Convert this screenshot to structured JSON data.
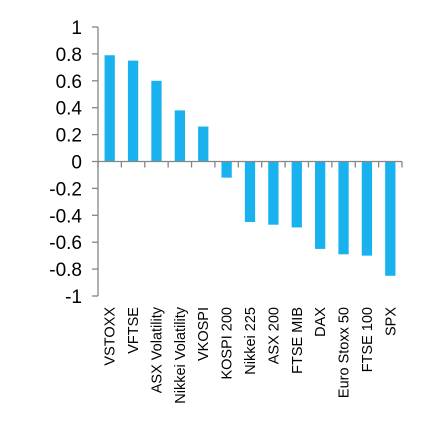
{
  "chart_data": {
    "type": "bar",
    "categories": [
      "VSTOXX",
      "VFTSE",
      "ASX Volatility",
      "Nikkei Volatility",
      "VKOSPI",
      "KOSPI 200",
      "Nikkei 225",
      "ASX 200",
      "FTSE MIB",
      "DAX",
      "Euro Stoxx 50",
      "FTSE 100",
      "SPX"
    ],
    "values": [
      0.79,
      0.75,
      0.6,
      0.38,
      0.26,
      -0.12,
      -0.45,
      -0.47,
      -0.49,
      -0.65,
      -0.69,
      -0.7,
      -0.85
    ],
    "ylim": [
      -1,
      1
    ],
    "yticks": [
      "1",
      "0.8",
      "0.6",
      "0.4",
      "0.2",
      "0",
      "-0.2",
      "-0.4",
      "-0.6",
      "-0.8",
      "-1"
    ],
    "color": "#1ab2ee",
    "axis_color": "#858585",
    "grid": false,
    "legend": false
  }
}
